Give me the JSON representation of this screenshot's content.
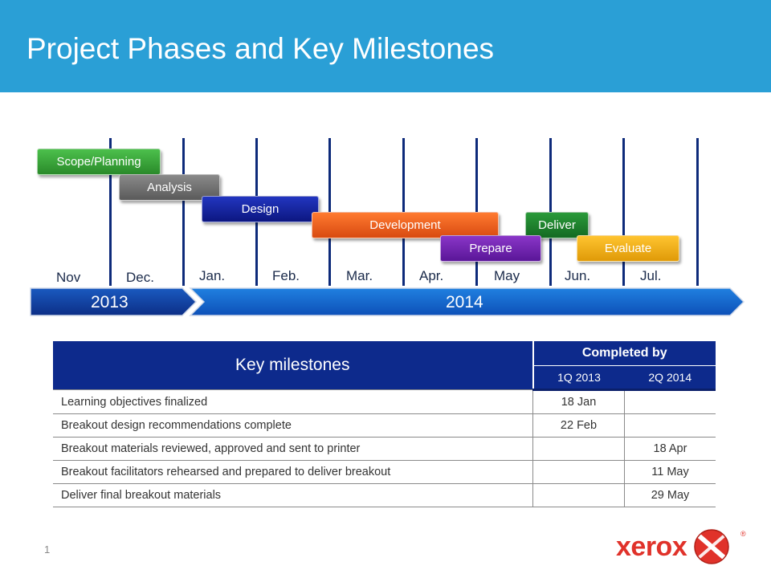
{
  "slide": {
    "title": "Project Phases and Key Milestones",
    "page_number": "1",
    "logo_text": "xerox",
    "logo_mark": "®"
  },
  "timeline": {
    "months": [
      "Nov",
      "Dec.",
      "Jan.",
      "Feb.",
      "Mar.",
      "Apr.",
      "May",
      "Jun.",
      "Jul."
    ],
    "years": [
      "2013",
      "2014"
    ],
    "phases": [
      {
        "label": "Scope/Planning",
        "color": "#2f9a2f"
      },
      {
        "label": "Analysis",
        "color": "#6e6e6e"
      },
      {
        "label": "Design",
        "color": "#12229a"
      },
      {
        "label": "Development",
        "color": "#e8581a"
      },
      {
        "label": "Prepare",
        "color": "#6a1fa8"
      },
      {
        "label": "Deliver",
        "color": "#1c7a2c"
      },
      {
        "label": "Evaluate",
        "color": "#e8aa10"
      }
    ]
  },
  "milestones": {
    "header": "Key milestones",
    "completed_by": "Completed by",
    "columns": [
      "1Q 2013",
      "2Q 2014"
    ],
    "rows": [
      {
        "label": "Learning objectives finalized",
        "q1": "18 Jan",
        "q2": ""
      },
      {
        "label": "Breakout design recommendations complete",
        "q1": "22 Feb",
        "q2": ""
      },
      {
        "label": "Breakout materials reviewed, approved and sent to printer",
        "q1": "",
        "q2": "18 Apr"
      },
      {
        "label": "Breakout facilitators rehearsed and prepared to deliver breakout",
        "q1": "",
        "q2": "11 May"
      },
      {
        "label": "Deliver final breakout materials",
        "q1": "",
        "q2": "29 May"
      }
    ]
  }
}
